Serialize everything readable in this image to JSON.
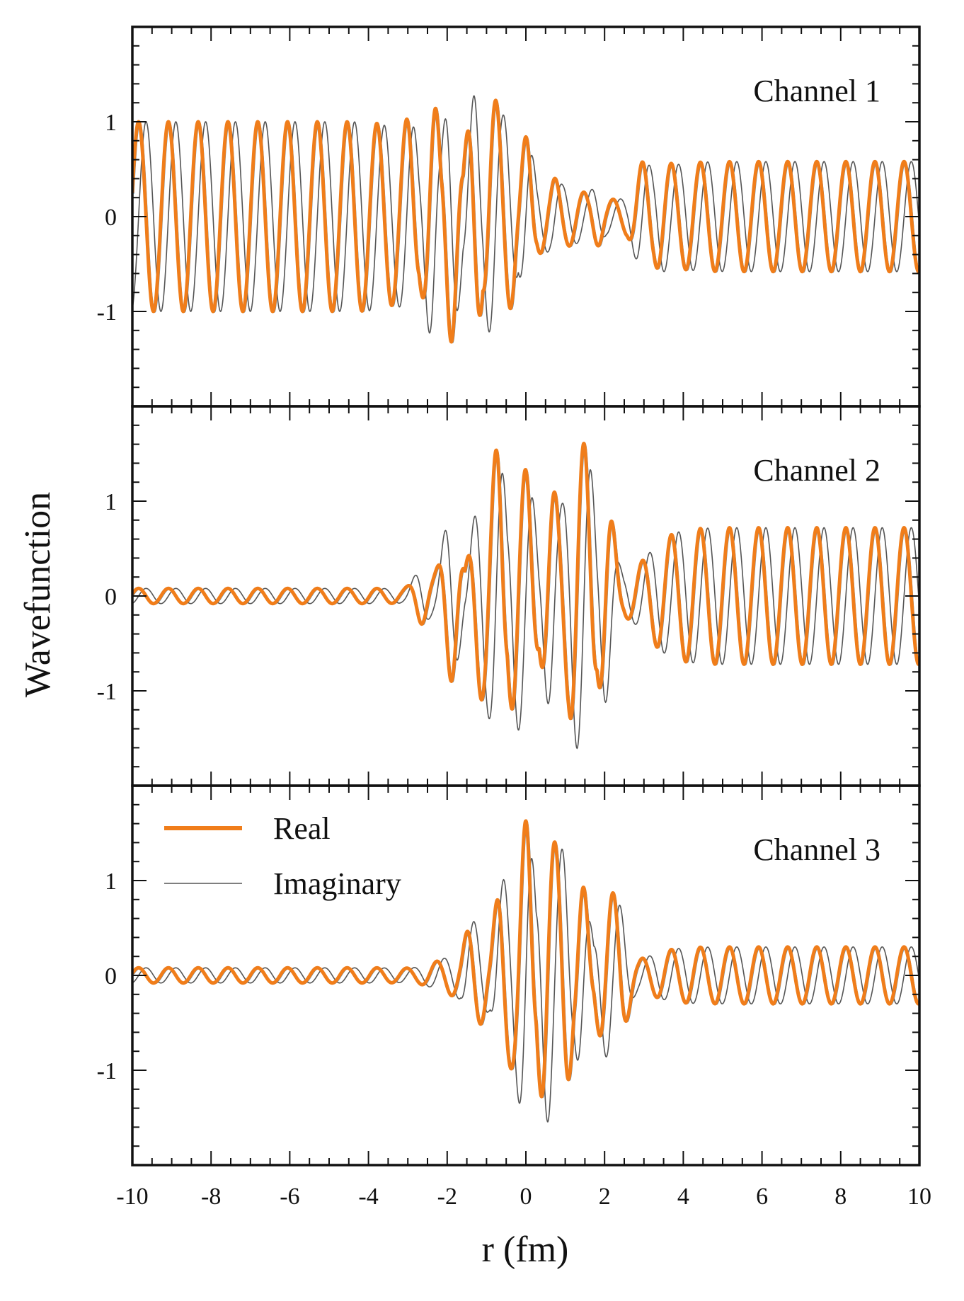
{
  "chart_data": {
    "type": "line",
    "ylabel": "Wavefunction",
    "xlabel": "r (fm)",
    "xlim": [
      -10,
      10
    ],
    "ylim": [
      -2,
      2
    ],
    "x_ticks": [
      -10,
      -8,
      -6,
      -4,
      -2,
      0,
      2,
      4,
      6,
      8,
      10
    ],
    "y_ticks": [
      -1,
      0,
      1
    ],
    "grid": false,
    "legend": {
      "placement": "top-left of bottom panel",
      "entries": [
        {
          "label": "Real",
          "color": "#f07d1a"
        },
        {
          "label": "Imaginary",
          "color": "#555555"
        }
      ]
    },
    "colors": {
      "real": "#f07d1a",
      "imaginary": "#555555",
      "shadow": "#2f86c9",
      "frame": "#111111"
    },
    "panels": [
      {
        "label": "Channel 1",
        "k_left": 8.3,
        "k_right": 8.5,
        "incoming_amplitude": 1.0,
        "transmitted_amplitude": 0.58,
        "peaks": [
          {
            "r": -3.0,
            "value": 1.1
          },
          {
            "r": -1.9,
            "value": 1.33
          },
          {
            "r": -0.9,
            "value": 1.18
          },
          {
            "r": -0.4,
            "value": 0.88
          },
          {
            "r": 0.7,
            "value": 0.38
          },
          {
            "r": 1.2,
            "value": 0.22
          },
          {
            "r": 1.8,
            "value": 0.3
          },
          {
            "r": 3.5,
            "value": 0.58
          }
        ],
        "troughs": [
          {
            "r": -2.4,
            "value": -1.32
          },
          {
            "r": -1.3,
            "value": -1.28
          },
          {
            "r": 0.0,
            "value": -0.84
          },
          {
            "r": 1.5,
            "value": -0.22
          },
          {
            "r": 3.0,
            "value": -0.58
          }
        ]
      },
      {
        "label": "Channel 2",
        "k_left": 8.3,
        "k_right": 8.5,
        "incoming_amplitude": 0.08,
        "transmitted_amplitude": 0.72,
        "peaks": [
          {
            "r": -2.7,
            "value": 0.42
          },
          {
            "r": -1.9,
            "value": 0.92
          },
          {
            "r": -0.3,
            "value": 1.12
          },
          {
            "r": 0.1,
            "value": 0.95
          },
          {
            "r": 1.2,
            "value": 1.23
          },
          {
            "r": 1.6,
            "value": 1.2
          },
          {
            "r": 5.0,
            "value": 0.72
          }
        ],
        "troughs": [
          {
            "r": -1.2,
            "value": -0.9
          },
          {
            "r": -0.7,
            "value": -1.45
          },
          {
            "r": 0.6,
            "value": -1.13
          },
          {
            "r": 1.2,
            "value": -1.2
          },
          {
            "r": 2.0,
            "value": -1.15
          },
          {
            "r": 5.0,
            "value": -0.72
          }
        ]
      },
      {
        "label": "Channel 3",
        "k_left": 8.3,
        "k_right": 8.5,
        "incoming_amplitude": 0.08,
        "transmitted_amplitude": 0.3,
        "peaks": [
          {
            "r": -1.4,
            "value": 0.48
          },
          {
            "r": -1.0,
            "value": 0.32
          },
          {
            "r": 0.5,
            "value": 1.42
          },
          {
            "r": 1.0,
            "value": 1.15
          },
          {
            "r": 2.0,
            "value": 0.72
          },
          {
            "r": 2.4,
            "value": 0.65
          },
          {
            "r": 6.0,
            "value": 0.3
          }
        ],
        "troughs": [
          {
            "r": -2.0,
            "value": -0.05
          },
          {
            "r": -0.6,
            "value": -0.95
          },
          {
            "r": 0.0,
            "value": -1.6
          },
          {
            "r": 1.4,
            "value": -0.98
          },
          {
            "r": 2.4,
            "value": -0.62
          },
          {
            "r": 6.0,
            "value": -0.3
          }
        ]
      }
    ]
  }
}
